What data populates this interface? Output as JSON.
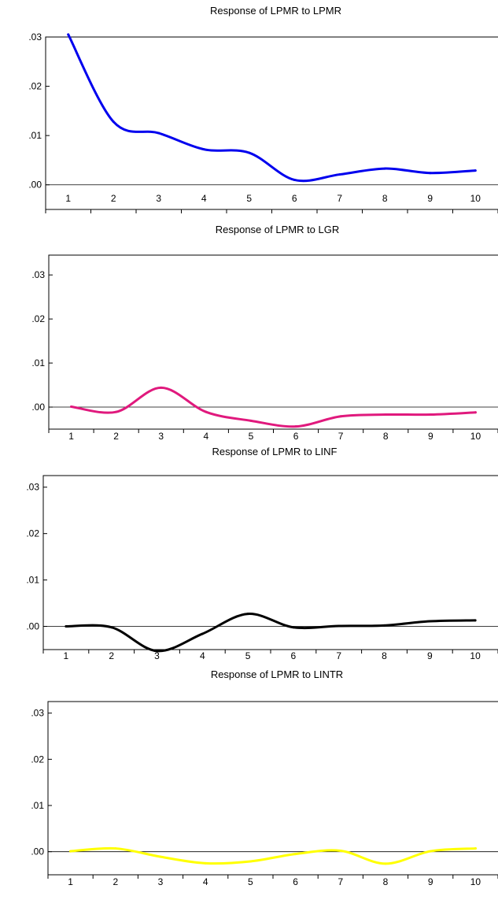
{
  "chart_data": [
    {
      "type": "line",
      "title": "Response of LPMR to LPMR",
      "x": [
        1,
        2,
        3,
        4,
        5,
        6,
        7,
        8,
        9,
        10
      ],
      "x_tick_labels": [
        "1",
        "2",
        "3",
        "4",
        "5",
        "6",
        "7",
        "8",
        "9",
        "10"
      ],
      "y_tick_labels": [
        ".00",
        ".01",
        ".02",
        ".03"
      ],
      "y_ticks": [
        0.0,
        0.01,
        0.02,
        0.03
      ],
      "ylim": [
        -0.005,
        0.03
      ],
      "series": [
        {
          "color": "#0000ee",
          "values": [
            0.0305,
            0.0128,
            0.0105,
            0.0072,
            0.0065,
            0.001,
            0.0021,
            0.0033,
            0.0024,
            0.0029
          ]
        }
      ],
      "grid": false
    },
    {
      "type": "line",
      "title": "Response of LPMR to LGR",
      "x": [
        1,
        2,
        3,
        4,
        5,
        6,
        7,
        8,
        9,
        10
      ],
      "x_tick_labels": [
        "1",
        "2",
        "3",
        "4",
        "5",
        "6",
        "7",
        "8",
        "9",
        "10"
      ],
      "y_tick_labels": [
        ".00",
        ".01",
        ".02",
        ".03"
      ],
      "y_ticks": [
        0.0,
        0.01,
        0.02,
        0.03
      ],
      "ylim": [
        -0.005,
        0.0345
      ],
      "series": [
        {
          "color": "#e0197d",
          "values": [
            0.0001,
            -0.0011,
            0.0044,
            -0.0011,
            -0.0031,
            -0.0044,
            -0.0021,
            -0.0017,
            -0.0017,
            -0.0012
          ]
        }
      ],
      "grid": false
    },
    {
      "type": "line",
      "title": "Response of LPMR to LINF",
      "x": [
        1,
        2,
        3,
        4,
        5,
        6,
        7,
        8,
        9,
        10
      ],
      "x_tick_labels": [
        "1",
        "2",
        "3",
        "4",
        "5",
        "6",
        "7",
        "8",
        "9",
        "10"
      ],
      "y_tick_labels": [
        ".00",
        ".01",
        ".02",
        ".03"
      ],
      "y_ticks": [
        0.0,
        0.01,
        0.02,
        0.03
      ],
      "ylim": [
        -0.005,
        0.0325
      ],
      "series": [
        {
          "color": "#000000",
          "values": [
            0.0,
            -0.0002,
            -0.0053,
            -0.0016,
            0.0027,
            -0.0002,
            0.0001,
            0.0002,
            0.0011,
            0.0013
          ]
        }
      ],
      "grid": false
    },
    {
      "type": "line",
      "title": "Response of LPMR to LINTR",
      "x": [
        1,
        2,
        3,
        4,
        5,
        6,
        7,
        8,
        9,
        10
      ],
      "x_tick_labels": [
        "1",
        "2",
        "3",
        "4",
        "5",
        "6",
        "7",
        "8",
        "9",
        "10"
      ],
      "y_tick_labels": [
        ".00",
        ".01",
        ".02",
        ".03"
      ],
      "y_ticks": [
        0.0,
        0.01,
        0.02,
        0.03
      ],
      "ylim": [
        -0.005,
        0.0325
      ],
      "series": [
        {
          "color": "#ffff00",
          "values": [
            0.0001,
            0.0007,
            -0.0011,
            -0.0025,
            -0.0021,
            -0.0005,
            0.0002,
            -0.0026,
            0.0001,
            0.0007
          ]
        }
      ],
      "grid": false
    }
  ]
}
